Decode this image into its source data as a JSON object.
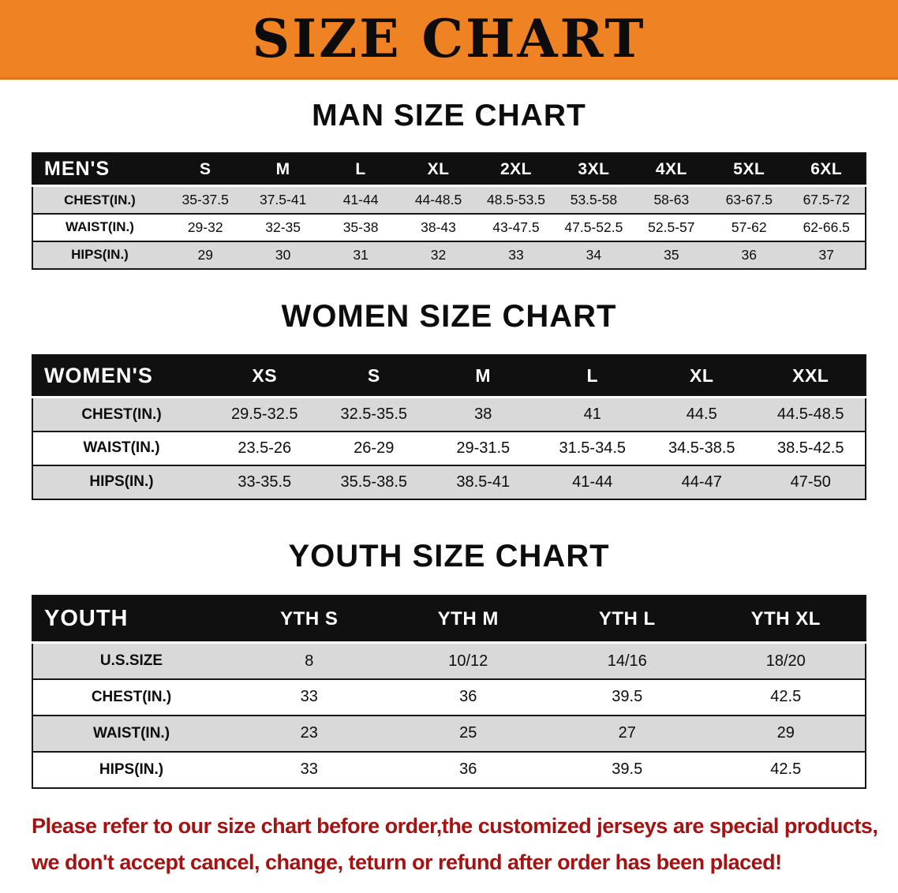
{
  "banner": {
    "title": "SIZE CHART"
  },
  "colors": {
    "banner_orange": "#ef8222",
    "header_black": "#101010",
    "row_gray": "#d9d9d9",
    "border_black": "#161616",
    "disclaimer_red": "#a41212"
  },
  "sections": [
    {
      "heading": "MAN SIZE CHART",
      "table": {
        "header": [
          "MEN'S",
          "S",
          "M",
          "L",
          "XL",
          "2XL",
          "3XL",
          "4XL",
          "5XL",
          "6XL"
        ],
        "rows": [
          {
            "label": "CHEST(IN.)",
            "values": [
              "35-37.5",
              "37.5-41",
              "41-44",
              "44-48.5",
              "48.5-53.5",
              "53.5-58",
              "58-63",
              "63-67.5",
              "67.5-72"
            ]
          },
          {
            "label": "WAIST(IN.)",
            "values": [
              "29-32",
              "32-35",
              "35-38",
              "38-43",
              "43-47.5",
              "47.5-52.5",
              "52.5-57",
              "57-62",
              "62-66.5"
            ]
          },
          {
            "label": "HIPS(IN.)",
            "values": [
              "29",
              "30",
              "31",
              "32",
              "33",
              "34",
              "35",
              "36",
              "37"
            ]
          }
        ]
      }
    },
    {
      "heading": "WOMEN SIZE CHART",
      "table": {
        "header": [
          "WOMEN'S",
          "XS",
          "S",
          "M",
          "L",
          "XL",
          "XXL"
        ],
        "rows": [
          {
            "label": "CHEST(IN.)",
            "values": [
              "29.5-32.5",
              "32.5-35.5",
              "38",
              "41",
              "44.5",
              "44.5-48.5"
            ]
          },
          {
            "label": "WAIST(IN.)",
            "values": [
              "23.5-26",
              "26-29",
              "29-31.5",
              "31.5-34.5",
              "34.5-38.5",
              "38.5-42.5"
            ]
          },
          {
            "label": "HIPS(IN.)",
            "values": [
              "33-35.5",
              "35.5-38.5",
              "38.5-41",
              "41-44",
              "44-47",
              "47-50"
            ]
          }
        ]
      }
    },
    {
      "heading": "YOUTH SIZE CHART",
      "table": {
        "header": [
          "YOUTH",
          "YTH S",
          "YTH M",
          "YTH L",
          "YTH XL"
        ],
        "rows": [
          {
            "label": "U.S.SIZE",
            "values": [
              "8",
              "10/12",
              "14/16",
              "18/20"
            ]
          },
          {
            "label": "CHEST(IN.)",
            "values": [
              "33",
              "36",
              "39.5",
              "42.5"
            ]
          },
          {
            "label": "WAIST(IN.)",
            "values": [
              "23",
              "25",
              "27",
              "29"
            ]
          },
          {
            "label": "HIPS(IN.)",
            "values": [
              "33",
              "36",
              "39.5",
              "42.5"
            ]
          }
        ]
      }
    }
  ],
  "disclaimer": {
    "line1": "Please refer to our size chart before order,the customized jerseys are special products,",
    "line2": "we don't accept cancel, change, teturn or refund after order has been placed!"
  }
}
